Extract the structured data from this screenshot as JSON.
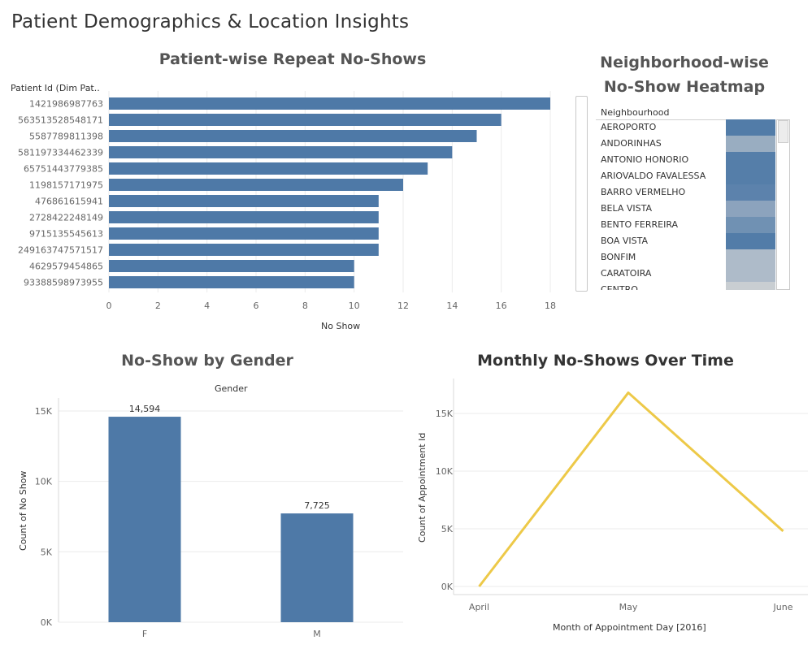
{
  "dashboard": {
    "title": "Patient Demographics & Location Insights"
  },
  "colors": {
    "bar": "#4e79a7",
    "line": "#edc948",
    "grid": "#ebebeb",
    "heat_low": "#d7d7d7",
    "heat_high": "#4e79a7"
  },
  "chart_data": [
    {
      "type": "bar",
      "orientation": "horizontal",
      "title": "Patient-wise Repeat No-Shows",
      "row_header": "Patient Id (Dim Pat..",
      "xlabel": "No Show",
      "xlim": [
        0,
        18
      ],
      "xticks": [
        0,
        2,
        4,
        6,
        8,
        10,
        12,
        14,
        16,
        18
      ],
      "categories": [
        "1421986987763",
        "563513528548171",
        "5587789811398",
        "581197334462339",
        "65751443779385",
        "1198157171975",
        "476861615941",
        "2728422248149",
        "9715135545613",
        "249163747571517",
        "4629579454865",
        "93388598973955"
      ],
      "values": [
        18,
        16,
        15,
        14,
        13,
        12,
        11,
        11,
        11,
        11,
        10,
        10
      ]
    },
    {
      "type": "heatmap",
      "title_line1": "Neighborhood-wise",
      "title_line2": "No-Show Heatmap",
      "column_header": "Neighbourhood",
      "categories": [
        "AEROPORTO",
        "ANDORINHAS",
        "ANTONIO HONORIO",
        "ARIOVALDO FAVALESSA",
        "BARRO VERMELHO",
        "BELA VISTA",
        "BENTO FERREIRA",
        "BOA VISTA",
        "BONFIM",
        "CARATOIRA",
        "CENTRO"
      ],
      "intensity": [
        0.97,
        0.45,
        0.95,
        0.95,
        0.9,
        0.55,
        0.75,
        0.97,
        0.3,
        0.3,
        0.1
      ]
    },
    {
      "type": "bar",
      "title": "No-Show by Gender",
      "column_header": "Gender",
      "ylabel": "Count of No Show",
      "ylim": [
        0,
        15000
      ],
      "yticks": [
        0,
        5000,
        10000,
        15000
      ],
      "ytick_labels": [
        "0K",
        "5K",
        "10K",
        "15K"
      ],
      "categories": [
        "F",
        "M"
      ],
      "values": [
        14594,
        7725
      ],
      "data_labels": [
        "14,594",
        "7,725"
      ]
    },
    {
      "type": "line",
      "title": "Monthly No-Shows Over Time",
      "xlabel": "Month of Appointment Day [2016]",
      "ylabel": "Count of Appointment Id",
      "ylim": [
        0,
        15000
      ],
      "yticks": [
        0,
        5000,
        10000,
        15000
      ],
      "ytick_labels": [
        "0K",
        "5K",
        "10K",
        "15K"
      ],
      "categories": [
        "April",
        "May",
        "June"
      ],
      "values": [
        0,
        16800,
        4800
      ]
    }
  ]
}
